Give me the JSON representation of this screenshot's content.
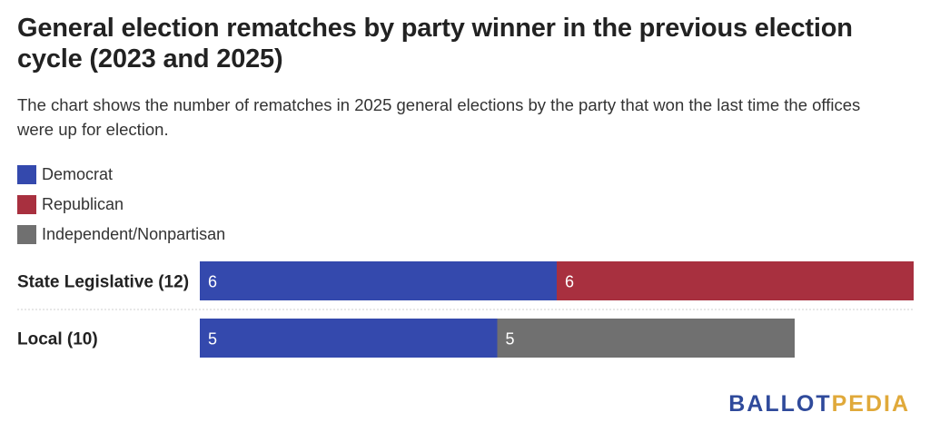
{
  "title": "General election rematches by party winner in the previous election cycle (2023 and 2025)",
  "subtitle": "The chart shows the number of rematches in 2025 general elections by the party that won the last time the offices were up for election.",
  "colors": {
    "Democrat": "#3449ad",
    "Republican": "#a8303f",
    "Independent/Nonpartisan": "#707070"
  },
  "legend": [
    {
      "label": "Democrat",
      "color": "#3449ad"
    },
    {
      "label": "Republican",
      "color": "#a8303f"
    },
    {
      "label": "Independent/Nonpartisan",
      "color": "#707070"
    }
  ],
  "chart_data": {
    "type": "bar",
    "orientation": "horizontal",
    "stacked": true,
    "categories": [
      "State Legislative (12)",
      "Local (10)"
    ],
    "series": [
      {
        "name": "Democrat",
        "values": [
          6,
          5
        ],
        "color": "#3449ad"
      },
      {
        "name": "Republican",
        "values": [
          6,
          0
        ],
        "color": "#a8303f"
      },
      {
        "name": "Independent/Nonpartisan",
        "values": [
          0,
          5
        ],
        "color": "#707070"
      }
    ],
    "xlim": [
      0,
      12
    ],
    "grid": false,
    "legend_position": "top-left"
  },
  "logo": {
    "part1": "BALLOT",
    "part2": "PEDIA"
  }
}
